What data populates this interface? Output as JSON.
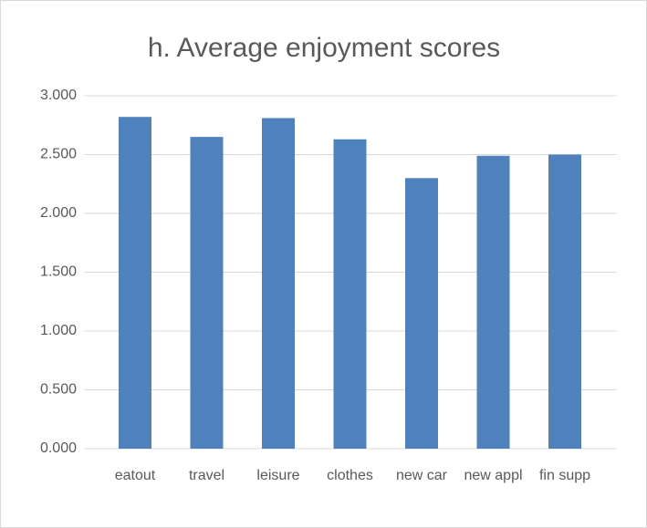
{
  "chart_data": {
    "type": "bar",
    "title": "h. Average enjoyment scores",
    "categories": [
      "eatout",
      "travel",
      "leisure",
      "clothes",
      "new car",
      "new appl",
      "fin supp"
    ],
    "values": [
      2.82,
      2.65,
      2.81,
      2.63,
      2.3,
      2.49,
      2.5
    ],
    "color": "#4f81bd",
    "ylim": [
      0,
      3
    ],
    "yticks": [
      {
        "value": 0,
        "label": "0.000"
      },
      {
        "value": 0.5,
        "label": "0.500"
      },
      {
        "value": 1,
        "label": "1.000"
      },
      {
        "value": 1.5,
        "label": "1.500"
      },
      {
        "value": 2,
        "label": "2.000"
      },
      {
        "value": 2.5,
        "label": "2.500"
      },
      {
        "value": 3,
        "label": "3.000"
      }
    ],
    "grid": true
  }
}
